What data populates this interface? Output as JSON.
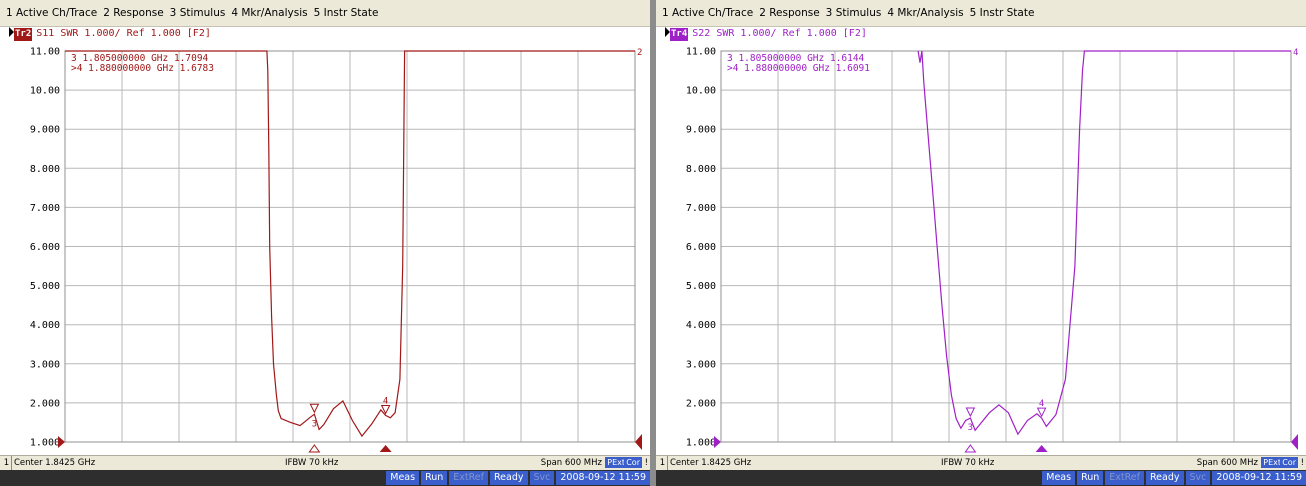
{
  "menu": [
    "1 Active Ch/Trace",
    "2 Response",
    "3 Stimulus",
    "4 Mkr/Analysis",
    "5 Instr State"
  ],
  "y_tick_labels": [
    "11.00",
    "10.00",
    "9.000",
    "8.000",
    "7.000",
    "6.000",
    "5.000",
    "4.000",
    "3.000",
    "2.000",
    "1.000"
  ],
  "status": {
    "channel": "1",
    "center": "Center 1.8425 GHz",
    "ifbw": "IFBW 70 kHz",
    "span": "Span 600 MHz",
    "pext": "PExt",
    "cor": "Cor",
    "excl": "!"
  },
  "bottom": {
    "meas": "Meas",
    "run": "Run",
    "extref": "ExtRef",
    "ready": "Ready",
    "svc": "Svc",
    "datetime": "2008-09-12 11:59"
  },
  "panes": [
    {
      "trace_badge": "Tr2",
      "trace_label": "S11  SWR 1.000/ Ref 1.000 [F2]",
      "color": "#a01818",
      "marker_lines": [
        "  3  1.805000000 GHz  1.7094",
        ">4  1.880000000 GHz  1.6783"
      ],
      "trace_end_label": "2",
      "marker_labels": [
        "3",
        "4"
      ]
    },
    {
      "trace_badge": "Tr4",
      "trace_label": "S22  SWR 1.000/ Ref 1.000 [F2]",
      "color": "#a020c8",
      "marker_lines": [
        "  3  1.805000000 GHz  1.6144",
        ">4  1.880000000 GHz  1.6091"
      ],
      "trace_end_label": "4",
      "marker_labels": [
        "3",
        "4"
      ]
    }
  ],
  "chart_data": [
    {
      "type": "line",
      "title": "S11 SWR 1.000/ Ref 1.000 [F2]",
      "xlabel": "",
      "ylabel": "",
      "xlim": [
        1.5425,
        2.1425
      ],
      "ylim": [
        1.0,
        11.0
      ],
      "grid": true,
      "series": [
        {
          "name": "S11",
          "x": [
            1.5425,
            1.755,
            1.756,
            1.757,
            1.758,
            1.76,
            1.762,
            1.765,
            1.767,
            1.77,
            1.78,
            1.79,
            1.8,
            1.805,
            1.81,
            1.815,
            1.825,
            1.835,
            1.845,
            1.855,
            1.865,
            1.875,
            1.88,
            1.885,
            1.89,
            1.895,
            1.898,
            1.9,
            2.1425
          ],
          "values": [
            11.0,
            11.0,
            10.5,
            8.5,
            6.0,
            4.2,
            3.0,
            2.2,
            1.8,
            1.6,
            1.5,
            1.42,
            1.62,
            1.71,
            1.32,
            1.45,
            1.85,
            2.05,
            1.55,
            1.15,
            1.45,
            1.82,
            1.68,
            1.62,
            1.75,
            2.6,
            5.5,
            11.0,
            11.0
          ]
        }
      ],
      "markers": [
        {
          "id": "3",
          "x": 1.805,
          "y": 1.7094
        },
        {
          "id": "4",
          "x": 1.88,
          "y": 1.6783
        }
      ]
    },
    {
      "type": "line",
      "title": "S22 SWR 1.000/ Ref 1.000 [F2]",
      "xlabel": "",
      "ylabel": "",
      "xlim": [
        1.5425,
        2.1425
      ],
      "ylim": [
        1.0,
        11.0
      ],
      "grid": true,
      "series": [
        {
          "name": "S22",
          "x": [
            1.75,
            1.752,
            1.754,
            1.756,
            1.76,
            1.765,
            1.77,
            1.775,
            1.78,
            1.785,
            1.79,
            1.795,
            1.8,
            1.805,
            1.81,
            1.815,
            1.825,
            1.835,
            1.845,
            1.855,
            1.865,
            1.875,
            1.88,
            1.885,
            1.895,
            1.905,
            1.915,
            1.92,
            1.923,
            1.925,
            2.1425
          ],
          "values": [
            11.0,
            10.7,
            11.0,
            10.2,
            9.0,
            7.5,
            6.0,
            4.5,
            3.2,
            2.2,
            1.6,
            1.35,
            1.55,
            1.61,
            1.3,
            1.45,
            1.75,
            1.95,
            1.75,
            1.2,
            1.55,
            1.72,
            1.61,
            1.4,
            1.7,
            2.6,
            5.5,
            9.0,
            10.5,
            11.0,
            11.0
          ]
        }
      ],
      "markers": [
        {
          "id": "3",
          "x": 1.805,
          "y": 1.6144
        },
        {
          "id": "4",
          "x": 1.88,
          "y": 1.6091
        }
      ]
    }
  ]
}
